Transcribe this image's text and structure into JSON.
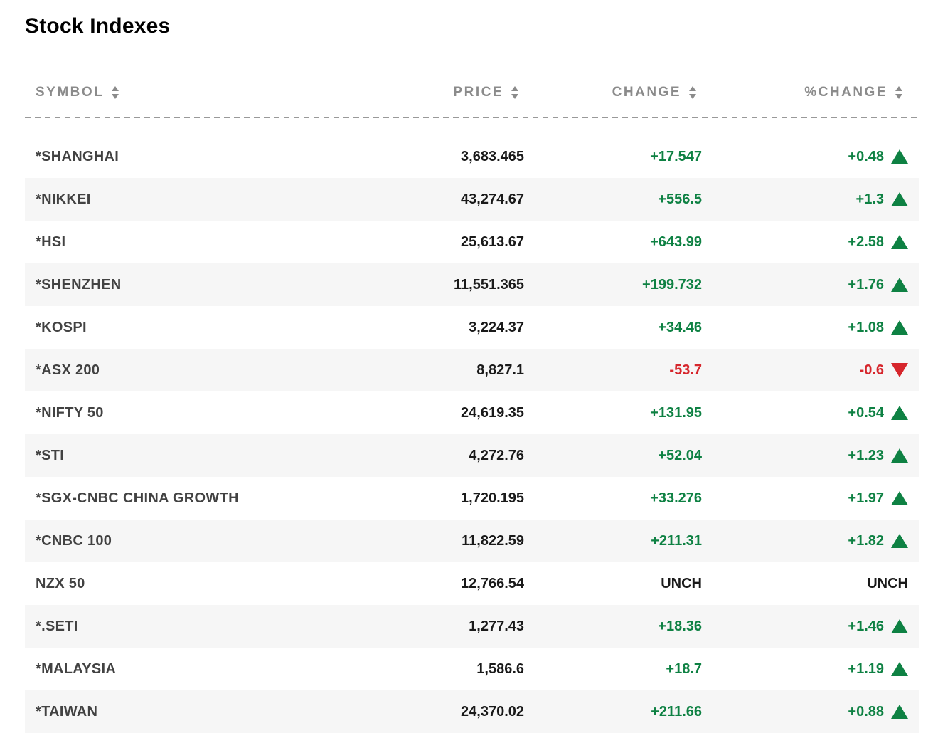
{
  "page": {
    "title": "Stock Indexes"
  },
  "colors": {
    "up": "#0e8143",
    "down": "#d6262c",
    "unch": "#1a1a1a"
  },
  "table": {
    "columns": [
      {
        "key": "symbol",
        "label": "SYMBOL"
      },
      {
        "key": "price",
        "label": "PRICE"
      },
      {
        "key": "change",
        "label": "CHANGE"
      },
      {
        "key": "pct_change",
        "label": "%CHANGE"
      }
    ],
    "rows": [
      {
        "symbol": "*SHANGHAI",
        "price": "3,683.465",
        "change": "+17.547",
        "pct_change": "+0.48",
        "direction": "up"
      },
      {
        "symbol": "*NIKKEI",
        "price": "43,274.67",
        "change": "+556.5",
        "pct_change": "+1.3",
        "direction": "up"
      },
      {
        "symbol": "*HSI",
        "price": "25,613.67",
        "change": "+643.99",
        "pct_change": "+2.58",
        "direction": "up"
      },
      {
        "symbol": "*SHENZHEN",
        "price": "11,551.365",
        "change": "+199.732",
        "pct_change": "+1.76",
        "direction": "up"
      },
      {
        "symbol": "*KOSPI",
        "price": "3,224.37",
        "change": "+34.46",
        "pct_change": "+1.08",
        "direction": "up"
      },
      {
        "symbol": "*ASX 200",
        "price": "8,827.1",
        "change": "-53.7",
        "pct_change": "-0.6",
        "direction": "down"
      },
      {
        "symbol": "*NIFTY 50",
        "price": "24,619.35",
        "change": "+131.95",
        "pct_change": "+0.54",
        "direction": "up"
      },
      {
        "symbol": "*STI",
        "price": "4,272.76",
        "change": "+52.04",
        "pct_change": "+1.23",
        "direction": "up"
      },
      {
        "symbol": "*SGX-CNBC CHINA GROWTH",
        "price": "1,720.195",
        "change": "+33.276",
        "pct_change": "+1.97",
        "direction": "up"
      },
      {
        "symbol": "*CNBC 100",
        "price": "11,822.59",
        "change": "+211.31",
        "pct_change": "+1.82",
        "direction": "up"
      },
      {
        "symbol": "NZX 50",
        "price": "12,766.54",
        "change": "UNCH",
        "pct_change": "UNCH",
        "direction": "unch"
      },
      {
        "symbol": "*.SETI",
        "price": "1,277.43",
        "change": "+18.36",
        "pct_change": "+1.46",
        "direction": "up"
      },
      {
        "symbol": "*MALAYSIA",
        "price": "1,586.6",
        "change": "+18.7",
        "pct_change": "+1.19",
        "direction": "up"
      },
      {
        "symbol": "*TAIWAN",
        "price": "24,370.02",
        "change": "+211.66",
        "pct_change": "+0.88",
        "direction": "up"
      }
    ]
  }
}
